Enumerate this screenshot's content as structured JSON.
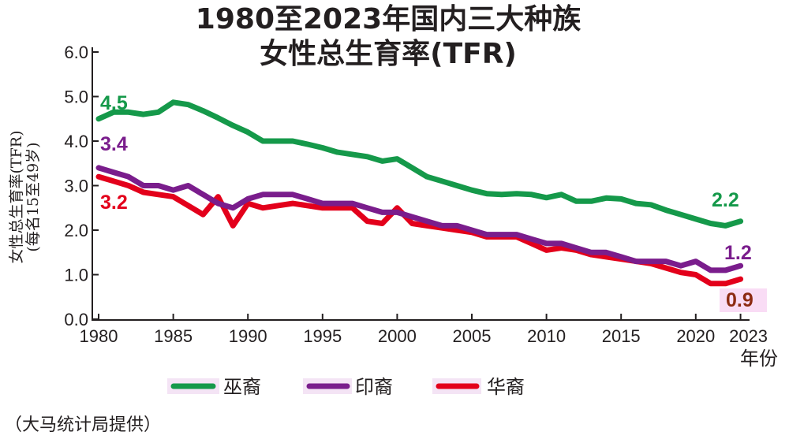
{
  "chart_data": {
    "type": "line",
    "title": [
      "1980至2023年国内三大种族",
      "女性总生育率(TFR)"
    ],
    "ylabel": [
      "女性总生育率(TFR)",
      "(每名15至49岁)"
    ],
    "xlabel": "年份",
    "ylim": [
      0,
      6
    ],
    "yticks": [
      "0.0",
      "1.0",
      "2.0",
      "3.0",
      "4.0",
      "5.0",
      "6.0"
    ],
    "xlim": [
      1980,
      2023
    ],
    "xticks": [
      "1980",
      "1985",
      "1990",
      "1995",
      "2000",
      "2005",
      "2010",
      "2015",
      "2020",
      "2023"
    ],
    "grid": false,
    "legend": "bottom",
    "source": "（大马统计局提供）",
    "x": [
      1980,
      1981,
      1982,
      1983,
      1984,
      1985,
      1986,
      1987,
      1988,
      1989,
      1990,
      1991,
      1992,
      1993,
      1994,
      1995,
      1996,
      1997,
      1998,
      1999,
      2000,
      2001,
      2002,
      2003,
      2004,
      2005,
      2006,
      2007,
      2008,
      2009,
      2010,
      2011,
      2012,
      2013,
      2014,
      2015,
      2016,
      2017,
      2018,
      2019,
      2020,
      2021,
      2022,
      2023
    ],
    "series": [
      {
        "name": "巫裔",
        "color": "#15994a",
        "start_label": "4.5",
        "end_label": "2.2",
        "values": [
          4.5,
          4.65,
          4.65,
          4.6,
          4.65,
          4.87,
          4.82,
          4.68,
          4.52,
          4.35,
          4.2,
          4.0,
          4.0,
          4.0,
          3.93,
          3.85,
          3.75,
          3.7,
          3.65,
          3.55,
          3.6,
          3.4,
          3.2,
          3.1,
          3.0,
          2.9,
          2.82,
          2.8,
          2.82,
          2.8,
          2.73,
          2.8,
          2.65,
          2.65,
          2.72,
          2.7,
          2.6,
          2.57,
          2.45,
          2.35,
          2.25,
          2.15,
          2.1,
          2.2
        ]
      },
      {
        "name": "印裔",
        "color": "#7a1d8c",
        "start_label": "3.4",
        "end_label": "1.2",
        "values": [
          3.4,
          3.3,
          3.2,
          3.0,
          3.0,
          2.9,
          3.0,
          2.8,
          2.6,
          2.5,
          2.7,
          2.8,
          2.8,
          2.8,
          2.7,
          2.6,
          2.6,
          2.6,
          2.5,
          2.4,
          2.4,
          2.3,
          2.2,
          2.1,
          2.1,
          2.0,
          1.9,
          1.9,
          1.9,
          1.8,
          1.7,
          1.7,
          1.6,
          1.5,
          1.5,
          1.4,
          1.3,
          1.3,
          1.3,
          1.2,
          1.3,
          1.1,
          1.1,
          1.2
        ]
      },
      {
        "name": "华裔",
        "color": "#e3001b",
        "start_label": "3.2",
        "end_label": "0.9",
        "end_label_color": "#8c2b12",
        "values": [
          3.2,
          3.1,
          3.0,
          2.85,
          2.8,
          2.75,
          2.55,
          2.35,
          2.75,
          2.1,
          2.6,
          2.5,
          2.55,
          2.6,
          2.55,
          2.5,
          2.5,
          2.5,
          2.2,
          2.15,
          2.5,
          2.15,
          2.1,
          2.05,
          2.0,
          1.95,
          1.85,
          1.85,
          1.85,
          1.7,
          1.55,
          1.6,
          1.55,
          1.45,
          1.4,
          1.35,
          1.3,
          1.25,
          1.15,
          1.05,
          1.0,
          0.8,
          0.8,
          0.9
        ]
      }
    ]
  }
}
